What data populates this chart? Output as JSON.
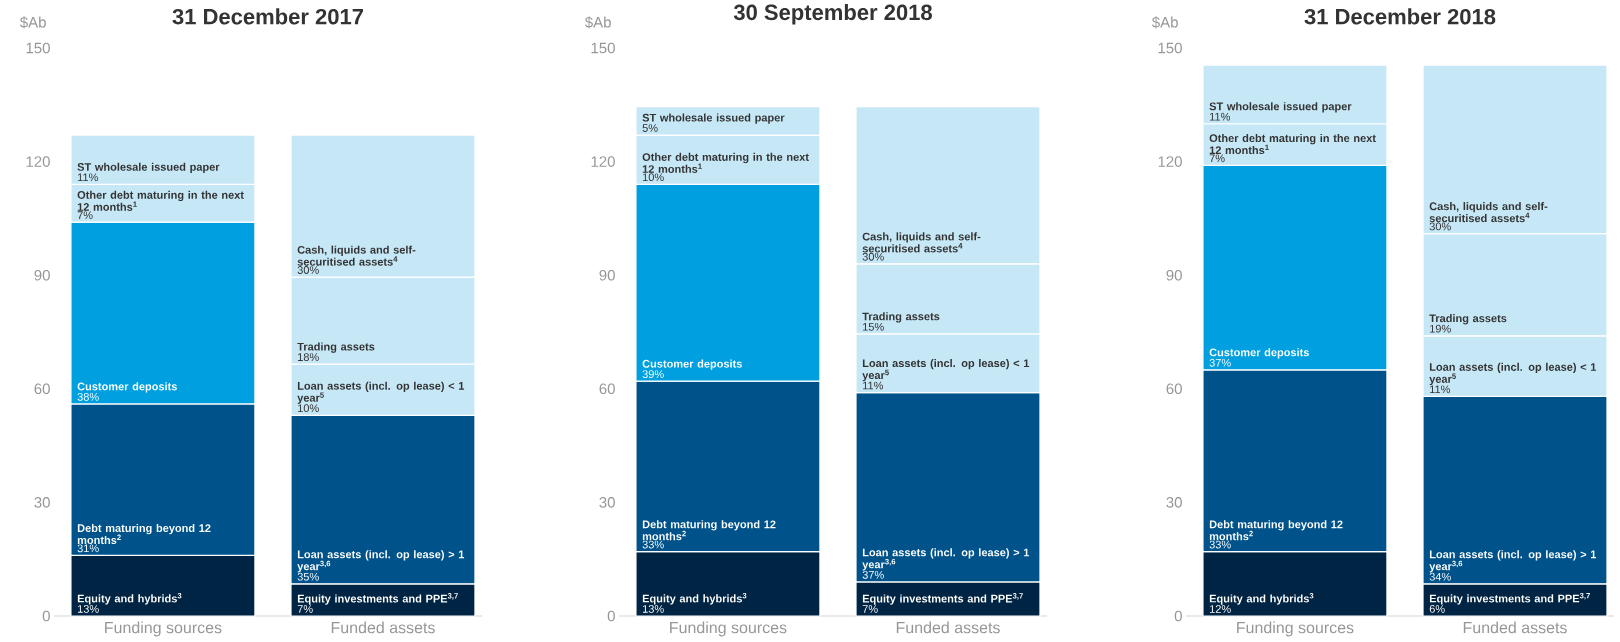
{
  "chart_data": [
    {
      "type": "bar",
      "stacked": true,
      "title": "31 December 2017",
      "ylabel": "$Ab",
      "categories": [
        "Funding sources",
        "Funded assets"
      ],
      "ylim": [
        0,
        150
      ],
      "yticks": [
        0,
        30,
        60,
        90,
        120,
        150
      ],
      "series": [
        {
          "name": "Equity and hybrids$^{3}$",
          "color": "#002443",
          "values": [
            16,
            null
          ]
        },
        {
          "name": "Debt maturing beyond 12 months$^{2}$",
          "color": "#00538a",
          "values": [
            40,
            null
          ]
        },
        {
          "name": "Customer deposits",
          "color": "#00a0e0",
          "values": [
            48,
            null
          ]
        },
        {
          "name": "Other debt maturing in the next 12 months$^{1}$",
          "color": "#c6e7f6",
          "values": [
            10,
            null
          ]
        },
        {
          "name": "ST wholesale issued paper",
          "color": "#c6e7f6",
          "values": [
            13,
            null
          ]
        },
        {
          "name": "Equity investments and PPE$^{3,7}$",
          "color": "#002443",
          "values": [
            null,
            8.5
          ]
        },
        {
          "name": "Loan assets (incl. op lease) > 1 year$^{3,6}$",
          "color": "#00538a",
          "values": [
            null,
            44.5
          ]
        },
        {
          "name": "Loan assets (incl. op lease) < 1 year$^{5}$",
          "color": "#c6e7f6",
          "values": [
            null,
            13.5
          ]
        },
        {
          "name": "Trading assets",
          "color": "#c6e7f6",
          "values": [
            null,
            23
          ]
        },
        {
          "name": "Cash, liquids and self-securitised assets$^{4}$",
          "color": "#c6e7f6",
          "values": [
            null,
            37.5
          ]
        }
      ],
      "annotations": [
        "13%",
        "31%",
        "38%",
        "7%",
        "11%",
        "7%",
        "35%",
        "10%",
        "18%",
        "30%"
      ]
    },
    {
      "type": "bar",
      "stacked": true,
      "title": "30 September 2018",
      "ylabel": "$Ab",
      "categories": [
        "Funding sources",
        "Funded assets"
      ],
      "ylim": [
        0,
        150
      ],
      "yticks": [
        0,
        30,
        60,
        90,
        120,
        150
      ],
      "series": [
        {
          "name": "Equity and hybrids$^{3}$",
          "color": "#002443",
          "values": [
            17,
            null
          ]
        },
        {
          "name": "Debt maturing beyond 12 months$^{2}$",
          "color": "#00538a",
          "values": [
            45,
            null
          ]
        },
        {
          "name": "Customer deposits",
          "color": "#00a0e0",
          "values": [
            52,
            null
          ]
        },
        {
          "name": "Other debt maturing in the next 12 months$^{1}$",
          "color": "#c6e7f6",
          "values": [
            13,
            null
          ]
        },
        {
          "name": "ST wholesale issued paper",
          "color": "#c6e7f6",
          "values": [
            7.5,
            null
          ]
        },
        {
          "name": "Equity investments and PPE$^{3,7}$",
          "color": "#002443",
          "values": [
            null,
            9
          ]
        },
        {
          "name": "Loan assets (incl. op lease) > 1 year$^{3,6}$",
          "color": "#00538a",
          "values": [
            null,
            50
          ]
        },
        {
          "name": "Loan assets (incl. op lease) < 1 year$^{5}$",
          "color": "#c6e7f6",
          "values": [
            null,
            15.5
          ]
        },
        {
          "name": "Trading assets",
          "color": "#c6e7f6",
          "values": [
            null,
            18.5
          ]
        },
        {
          "name": "Cash, liquids and self-securitised assets$^{4}$",
          "color": "#c6e7f6",
          "values": [
            null,
            41.5
          ]
        }
      ],
      "annotations": [
        "13%",
        "33%",
        "39%",
        "10%",
        "5%",
        "7%",
        "37%",
        "11%",
        "15%",
        "30%"
      ]
    },
    {
      "type": "bar",
      "stacked": true,
      "title": "31 December 2018",
      "ylabel": "$Ab",
      "categories": [
        "Funding sources",
        "Funded assets"
      ],
      "ylim": [
        0,
        150
      ],
      "yticks": [
        0,
        30,
        60,
        90,
        120,
        150
      ],
      "series": [
        {
          "name": "Equity and hybrids$^{3}$",
          "color": "#002443",
          "values": [
            17,
            null
          ]
        },
        {
          "name": "Debt maturing beyond 12 months$^{2}$",
          "color": "#00538a",
          "values": [
            48,
            null
          ]
        },
        {
          "name": "Customer deposits",
          "color": "#00a0e0",
          "values": [
            54,
            null
          ]
        },
        {
          "name": "Other debt maturing in the next 12 months$^{1}$",
          "color": "#c6e7f6",
          "values": [
            11,
            null
          ]
        },
        {
          "name": "ST wholesale issued paper",
          "color": "#c6e7f6",
          "values": [
            15.5,
            null
          ]
        },
        {
          "name": "Equity investments and PPE$^{3,7}$",
          "color": "#002443",
          "values": [
            null,
            8.5
          ]
        },
        {
          "name": "Loan assets (incl. op lease) > 1 year$^{3,6}$",
          "color": "#00538a",
          "values": [
            null,
            49.5
          ]
        },
        {
          "name": "Loan assets (incl. op lease) < 1 year$^{5}$",
          "color": "#c6e7f6",
          "values": [
            null,
            16
          ]
        },
        {
          "name": "Trading assets",
          "color": "#c6e7f6",
          "values": [
            null,
            27
          ]
        },
        {
          "name": "Cash, liquids and self-securitised assets$^{4}$",
          "color": "#c6e7f6",
          "values": [
            null,
            44.5
          ]
        }
      ],
      "annotations": [
        "12%",
        "33%",
        "37%",
        "7%",
        "11%",
        "6%",
        "34%",
        "11%",
        "19%",
        "30%"
      ]
    }
  ]
}
